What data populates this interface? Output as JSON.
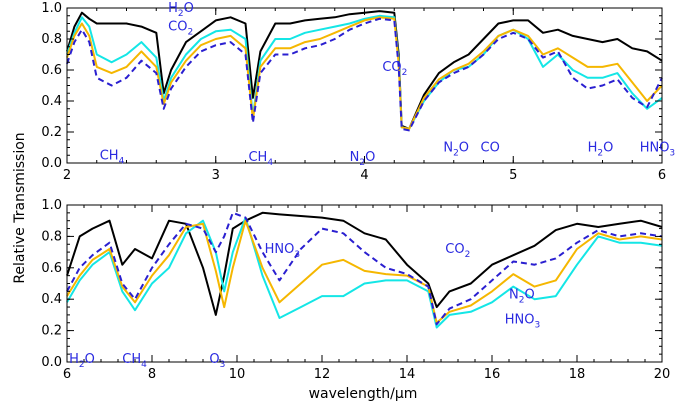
{
  "ylabel": "Relative  Transmission",
  "xlabel": "wavelength/μm",
  "colors": {
    "s1": "#000000",
    "s2": "#2a1fd0",
    "s3": "#f5b700",
    "s4": "#14e6e6",
    "annotation": "#2a2ae0"
  },
  "chart_data": [
    {
      "type": "line",
      "xlim": [
        2,
        6
      ],
      "ylim": [
        0,
        1
      ],
      "xticks": [
        "2",
        "3",
        "4",
        "5",
        "6"
      ],
      "yticks": [
        "0.0",
        "0.2",
        "0.4",
        "0.6",
        "0.8",
        "1.0"
      ],
      "annotations": [
        {
          "text": "CH",
          "sub": "4",
          "x": 2.22,
          "y": 0.05
        },
        {
          "text": "H",
          "sub": "2",
          "tail": "O",
          "x": 2.68,
          "y": 1.0
        },
        {
          "text": "CO",
          "sub": "2",
          "x": 2.68,
          "y": 0.88
        },
        {
          "text": "CH",
          "sub": "4",
          "x": 3.22,
          "y": 0.04
        },
        {
          "text": "N",
          "sub": "2",
          "tail": "O",
          "x": 3.9,
          "y": 0.04
        },
        {
          "text": "CO",
          "sub": "2",
          "x": 4.12,
          "y": 0.62
        },
        {
          "text": "N",
          "sub": "2",
          "tail": "O",
          "x": 4.53,
          "y": 0.1
        },
        {
          "text": "CO",
          "x": 4.78,
          "y": 0.1
        },
        {
          "text": "H",
          "sub": "2",
          "tail": "O",
          "x": 5.5,
          "y": 0.1
        },
        {
          "text": "HNO",
          "sub": "3",
          "x": 5.85,
          "y": 0.1
        }
      ],
      "series": [
        {
          "color": "#000000",
          "dash": "",
          "x": [
            2.0,
            2.05,
            2.1,
            2.15,
            2.2,
            2.3,
            2.4,
            2.5,
            2.6,
            2.65,
            2.7,
            2.8,
            2.9,
            3.0,
            3.1,
            3.2,
            3.25,
            3.3,
            3.4,
            3.5,
            3.6,
            3.7,
            3.8,
            3.9,
            4.0,
            4.1,
            4.2,
            4.23,
            4.25,
            4.3,
            4.4,
            4.5,
            4.6,
            4.7,
            4.8,
            4.9,
            5.0,
            5.1,
            5.2,
            5.3,
            5.4,
            5.5,
            5.6,
            5.7,
            5.8,
            5.9,
            6.0
          ],
          "y": [
            0.72,
            0.88,
            0.97,
            0.93,
            0.9,
            0.9,
            0.9,
            0.88,
            0.84,
            0.45,
            0.6,
            0.78,
            0.85,
            0.92,
            0.94,
            0.9,
            0.42,
            0.72,
            0.9,
            0.9,
            0.92,
            0.93,
            0.94,
            0.96,
            0.97,
            0.98,
            0.97,
            0.7,
            0.24,
            0.22,
            0.44,
            0.58,
            0.65,
            0.7,
            0.8,
            0.9,
            0.92,
            0.92,
            0.84,
            0.86,
            0.82,
            0.8,
            0.78,
            0.8,
            0.74,
            0.72,
            0.66
          ]
        },
        {
          "color": "#14e6e6",
          "dash": "",
          "x": [
            2.0,
            2.05,
            2.1,
            2.15,
            2.2,
            2.3,
            2.4,
            2.5,
            2.6,
            2.65,
            2.7,
            2.8,
            2.9,
            3.0,
            3.1,
            3.2,
            3.25,
            3.3,
            3.4,
            3.5,
            3.6,
            3.7,
            3.8,
            3.9,
            4.0,
            4.1,
            4.2,
            4.23,
            4.25,
            4.3,
            4.4,
            4.5,
            4.6,
            4.7,
            4.8,
            4.9,
            5.0,
            5.1,
            5.2,
            5.3,
            5.4,
            5.5,
            5.6,
            5.7,
            5.8,
            5.9,
            6.0
          ],
          "y": [
            0.7,
            0.84,
            0.94,
            0.88,
            0.7,
            0.65,
            0.7,
            0.78,
            0.68,
            0.4,
            0.55,
            0.7,
            0.8,
            0.85,
            0.86,
            0.8,
            0.3,
            0.66,
            0.8,
            0.8,
            0.84,
            0.86,
            0.88,
            0.9,
            0.93,
            0.95,
            0.94,
            0.66,
            0.23,
            0.22,
            0.4,
            0.52,
            0.6,
            0.62,
            0.7,
            0.82,
            0.86,
            0.8,
            0.62,
            0.7,
            0.6,
            0.55,
            0.55,
            0.58,
            0.45,
            0.35,
            0.42
          ]
        },
        {
          "color": "#f5b700",
          "dash": "",
          "x": [
            2.0,
            2.05,
            2.1,
            2.15,
            2.2,
            2.3,
            2.4,
            2.5,
            2.6,
            2.65,
            2.7,
            2.8,
            2.9,
            3.0,
            3.1,
            3.2,
            3.25,
            3.3,
            3.4,
            3.5,
            3.6,
            3.7,
            3.8,
            3.9,
            4.0,
            4.1,
            4.2,
            4.23,
            4.25,
            4.3,
            4.4,
            4.5,
            4.6,
            4.7,
            4.8,
            4.9,
            5.0,
            5.1,
            5.2,
            5.3,
            5.4,
            5.5,
            5.6,
            5.7,
            5.8,
            5.9,
            6.0
          ],
          "y": [
            0.68,
            0.82,
            0.9,
            0.82,
            0.62,
            0.58,
            0.62,
            0.72,
            0.62,
            0.38,
            0.52,
            0.66,
            0.76,
            0.8,
            0.82,
            0.74,
            0.28,
            0.62,
            0.74,
            0.74,
            0.78,
            0.8,
            0.84,
            0.88,
            0.92,
            0.94,
            0.93,
            0.64,
            0.23,
            0.22,
            0.42,
            0.54,
            0.6,
            0.64,
            0.72,
            0.82,
            0.86,
            0.82,
            0.7,
            0.74,
            0.68,
            0.62,
            0.62,
            0.64,
            0.52,
            0.4,
            0.5
          ]
        },
        {
          "color": "#2a1fd0",
          "dash": "6,4",
          "x": [
            2.0,
            2.05,
            2.1,
            2.15,
            2.2,
            2.3,
            2.4,
            2.5,
            2.6,
            2.65,
            2.7,
            2.8,
            2.9,
            3.0,
            3.1,
            3.2,
            3.25,
            3.3,
            3.4,
            3.5,
            3.6,
            3.7,
            3.8,
            3.9,
            4.0,
            4.1,
            4.2,
            4.23,
            4.25,
            4.3,
            4.4,
            4.5,
            4.6,
            4.7,
            4.8,
            4.9,
            5.0,
            5.1,
            5.2,
            5.3,
            5.4,
            5.5,
            5.6,
            5.7,
            5.8,
            5.9,
            6.0
          ],
          "y": [
            0.64,
            0.78,
            0.86,
            0.78,
            0.55,
            0.5,
            0.55,
            0.66,
            0.58,
            0.35,
            0.48,
            0.62,
            0.72,
            0.76,
            0.78,
            0.7,
            0.26,
            0.58,
            0.7,
            0.7,
            0.74,
            0.76,
            0.8,
            0.86,
            0.9,
            0.93,
            0.92,
            0.62,
            0.22,
            0.21,
            0.4,
            0.52,
            0.58,
            0.62,
            0.7,
            0.8,
            0.84,
            0.8,
            0.68,
            0.72,
            0.55,
            0.48,
            0.5,
            0.54,
            0.42,
            0.36,
            0.55
          ]
        }
      ]
    },
    {
      "type": "line",
      "xlim": [
        6,
        20
      ],
      "ylim": [
        0,
        1
      ],
      "xticks": [
        "6",
        "8",
        "10",
        "12",
        "14",
        "16",
        "18",
        "20"
      ],
      "yticks": [
        "0.0",
        "0.2",
        "0.4",
        "0.6",
        "0.8",
        "1.0"
      ],
      "annotations": [
        {
          "text": "H",
          "sub": "2",
          "tail": "O",
          "x": 6.05,
          "y": 0.02
        },
        {
          "text": "CH",
          "sub": "4",
          "x": 7.3,
          "y": 0.02
        },
        {
          "text": "O",
          "sub": "3",
          "x": 9.35,
          "y": 0.02
        },
        {
          "text": "HNO",
          "sub": "3",
          "x": 10.65,
          "y": 0.72
        },
        {
          "text": "CO",
          "sub": "2",
          "x": 14.9,
          "y": 0.72
        },
        {
          "text": "N",
          "sub": "2",
          "tail": "O",
          "x": 16.4,
          "y": 0.43
        },
        {
          "text": "HNO",
          "sub": "3",
          "x": 16.3,
          "y": 0.27
        }
      ],
      "series": [
        {
          "color": "#000000",
          "dash": "",
          "x": [
            6.0,
            6.3,
            6.6,
            7.0,
            7.3,
            7.6,
            8.0,
            8.4,
            8.8,
            9.2,
            9.5,
            9.7,
            9.9,
            10.2,
            10.6,
            11.0,
            11.5,
            12.0,
            12.5,
            13.0,
            13.5,
            14.0,
            14.5,
            14.7,
            15.0,
            15.5,
            16.0,
            16.5,
            17.0,
            17.5,
            18.0,
            18.5,
            19.0,
            19.5,
            20.0
          ],
          "y": [
            0.55,
            0.8,
            0.85,
            0.9,
            0.62,
            0.72,
            0.66,
            0.9,
            0.88,
            0.6,
            0.3,
            0.55,
            0.85,
            0.9,
            0.95,
            0.94,
            0.93,
            0.92,
            0.9,
            0.82,
            0.78,
            0.62,
            0.5,
            0.35,
            0.45,
            0.5,
            0.62,
            0.68,
            0.74,
            0.84,
            0.88,
            0.86,
            0.88,
            0.9,
            0.86
          ]
        },
        {
          "color": "#14e6e6",
          "dash": "",
          "x": [
            6.0,
            6.3,
            6.6,
            7.0,
            7.3,
            7.6,
            8.0,
            8.4,
            8.8,
            9.2,
            9.5,
            9.7,
            9.9,
            10.2,
            10.6,
            11.0,
            11.5,
            12.0,
            12.5,
            13.0,
            13.5,
            14.0,
            14.5,
            14.7,
            15.0,
            15.5,
            16.0,
            16.5,
            17.0,
            17.5,
            18.0,
            18.5,
            19.0,
            19.5,
            20.0
          ],
          "y": [
            0.38,
            0.52,
            0.62,
            0.7,
            0.45,
            0.33,
            0.5,
            0.6,
            0.82,
            0.9,
            0.7,
            0.45,
            0.7,
            0.92,
            0.55,
            0.28,
            0.35,
            0.42,
            0.42,
            0.5,
            0.52,
            0.52,
            0.45,
            0.22,
            0.3,
            0.32,
            0.38,
            0.48,
            0.4,
            0.42,
            0.62,
            0.8,
            0.76,
            0.76,
            0.74
          ]
        },
        {
          "color": "#f5b700",
          "dash": "",
          "x": [
            6.0,
            6.3,
            6.6,
            7.0,
            7.3,
            7.6,
            8.0,
            8.4,
            8.8,
            9.2,
            9.5,
            9.7,
            9.9,
            10.2,
            10.6,
            11.0,
            11.5,
            12.0,
            12.5,
            13.0,
            13.5,
            14.0,
            14.5,
            14.7,
            15.0,
            15.5,
            16.0,
            16.5,
            17.0,
            17.5,
            18.0,
            18.5,
            19.0,
            19.5,
            20.0
          ],
          "y": [
            0.42,
            0.55,
            0.65,
            0.72,
            0.48,
            0.38,
            0.55,
            0.68,
            0.86,
            0.88,
            0.58,
            0.35,
            0.6,
            0.9,
            0.6,
            0.38,
            0.5,
            0.62,
            0.65,
            0.58,
            0.56,
            0.55,
            0.48,
            0.25,
            0.32,
            0.36,
            0.45,
            0.56,
            0.48,
            0.52,
            0.72,
            0.82,
            0.78,
            0.8,
            0.78
          ]
        },
        {
          "color": "#2a1fd0",
          "dash": "6,4",
          "x": [
            6.0,
            6.3,
            6.6,
            7.0,
            7.3,
            7.6,
            8.0,
            8.4,
            8.8,
            9.2,
            9.5,
            9.7,
            9.9,
            10.2,
            10.6,
            11.0,
            11.5,
            12.0,
            12.5,
            13.0,
            13.5,
            14.0,
            14.5,
            14.7,
            15.0,
            15.5,
            16.0,
            16.5,
            17.0,
            17.5,
            18.0,
            18.5,
            19.0,
            19.5,
            20.0
          ],
          "y": [
            0.45,
            0.6,
            0.68,
            0.76,
            0.5,
            0.4,
            0.6,
            0.75,
            0.88,
            0.85,
            0.7,
            0.8,
            0.95,
            0.92,
            0.7,
            0.52,
            0.72,
            0.85,
            0.82,
            0.7,
            0.6,
            0.56,
            0.48,
            0.24,
            0.34,
            0.4,
            0.52,
            0.64,
            0.62,
            0.66,
            0.76,
            0.84,
            0.8,
            0.82,
            0.8
          ]
        }
      ]
    }
  ]
}
